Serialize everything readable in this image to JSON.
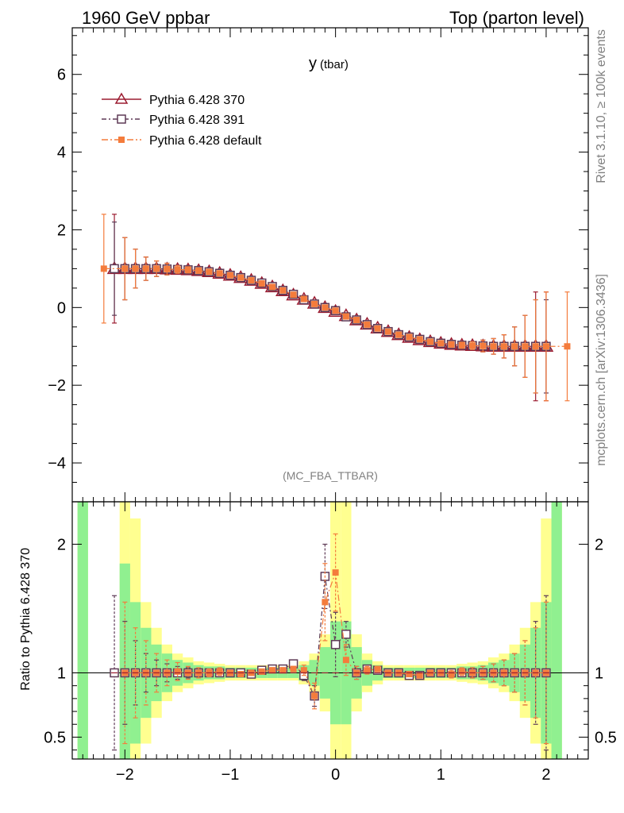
{
  "header": {
    "left": "1960 GeV ppbar",
    "right": "Top (parton level)"
  },
  "side_labels": {
    "rivet": "Rivet 3.1.10, ≥ 100k events",
    "mcplots": "mcplots.cern.ch [arXiv:1306.3436]"
  },
  "chart_data": {
    "type": "scatter",
    "title": "y",
    "title_sub": "(tbar)",
    "analysis": "(MC_FBA_TTBAR)",
    "xlim": [
      -2.5,
      2.4
    ],
    "ylim": [
      -5,
      7.2
    ],
    "ratio_ylim": [
      0.33,
      2.33
    ],
    "ratio_ylabel": "Ratio to Pythia 6.428 370",
    "x_ticks": [
      "−2",
      "−1",
      "0",
      "1",
      "2"
    ],
    "y_ticks": [
      "−4",
      "−2",
      "0",
      "2",
      "4",
      "6"
    ],
    "ratio_ticks": [
      "0.5",
      "1",
      "2"
    ],
    "colors": {
      "p370": "#9b1b30",
      "p391": "#5e3a56",
      "pdef": "#f47c3c",
      "band_green": "#90f090",
      "band_yellow": "#ffff90"
    },
    "series": [
      {
        "name": "Pythia 6.428 370",
        "x": [
          -2.1,
          -2.0,
          -1.9,
          -1.8,
          -1.7,
          -1.6,
          -1.5,
          -1.4,
          -1.3,
          -1.2,
          -1.1,
          -1.0,
          -0.9,
          -0.8,
          -0.7,
          -0.6,
          -0.5,
          -0.4,
          -0.3,
          -0.2,
          -0.1,
          0.0,
          0.1,
          0.2,
          0.3,
          0.4,
          0.5,
          0.6,
          0.7,
          0.8,
          0.9,
          1.0,
          1.1,
          1.2,
          1.3,
          1.4,
          1.5,
          1.6,
          1.7,
          1.8,
          1.9,
          2.0
        ],
        "y": [
          1.0,
          1.0,
          1.0,
          1.0,
          1.0,
          0.99,
          0.98,
          0.97,
          0.95,
          0.92,
          0.88,
          0.83,
          0.77,
          0.7,
          0.62,
          0.53,
          0.43,
          0.32,
          0.21,
          0.11,
          0.0,
          -0.1,
          -0.21,
          -0.32,
          -0.43,
          -0.53,
          -0.62,
          -0.7,
          -0.77,
          -0.83,
          -0.88,
          -0.92,
          -0.95,
          -0.97,
          -0.98,
          -0.99,
          -1.0,
          -1.0,
          -1.0,
          -1.0,
          -1.0,
          -1.0
        ],
        "err": [
          1.4,
          0.8,
          0.5,
          0.3,
          0.2,
          0.15,
          0.1,
          0.08,
          0.07,
          0.06,
          0.05,
          0.05,
          0.05,
          0.05,
          0.05,
          0.05,
          0.05,
          0.05,
          0.05,
          0.05,
          0.05,
          0.05,
          0.05,
          0.05,
          0.05,
          0.05,
          0.05,
          0.05,
          0.05,
          0.05,
          0.05,
          0.06,
          0.07,
          0.08,
          0.1,
          0.15,
          0.2,
          0.3,
          0.5,
          0.8,
          1.4,
          1.4
        ],
        "ratio": [
          1.0,
          1.0,
          1.0,
          1.0,
          1.0,
          1.0,
          1.0,
          1.0,
          1.0,
          1.0,
          1.0,
          1.0,
          1.0,
          1.0,
          1.0,
          1.0,
          1.0,
          1.0,
          1.0,
          1.0,
          1.0,
          1.0,
          1.0,
          1.0,
          1.0,
          1.0,
          1.0,
          1.0,
          1.0,
          1.0,
          1.0,
          1.0,
          1.0,
          1.0,
          1.0,
          1.0,
          1.0,
          1.0,
          1.0,
          1.0,
          1.0,
          1.0
        ]
      },
      {
        "name": "Pythia 6.428 391",
        "x": [
          -2.1,
          -2.0,
          -1.9,
          -1.8,
          -1.7,
          -1.6,
          -1.5,
          -1.4,
          -1.3,
          -1.2,
          -1.1,
          -1.0,
          -0.9,
          -0.8,
          -0.7,
          -0.6,
          -0.5,
          -0.4,
          -0.3,
          -0.2,
          -0.1,
          0.0,
          0.1,
          0.2,
          0.3,
          0.4,
          0.5,
          0.6,
          0.7,
          0.8,
          0.9,
          1.0,
          1.1,
          1.2,
          1.3,
          1.4,
          1.5,
          1.6,
          1.7,
          1.8,
          1.9,
          2.0
        ],
        "y": [
          1.0,
          1.0,
          1.0,
          1.0,
          1.0,
          0.99,
          0.98,
          0.97,
          0.95,
          0.92,
          0.88,
          0.83,
          0.77,
          0.7,
          0.63,
          0.54,
          0.44,
          0.34,
          0.2,
          0.09,
          0.0,
          -0.08,
          -0.24,
          -0.32,
          -0.44,
          -0.54,
          -0.62,
          -0.7,
          -0.76,
          -0.82,
          -0.88,
          -0.92,
          -0.95,
          -0.97,
          -0.98,
          -0.99,
          -1.0,
          -1.0,
          -1.0,
          -1.0,
          -1.0,
          -1.0
        ],
        "err": [
          1.2,
          0.8,
          0.5,
          0.3,
          0.2,
          0.15,
          0.1,
          0.08,
          0.07,
          0.06,
          0.05,
          0.05,
          0.05,
          0.05,
          0.05,
          0.05,
          0.05,
          0.05,
          0.05,
          0.05,
          0.05,
          0.05,
          0.05,
          0.05,
          0.05,
          0.05,
          0.05,
          0.05,
          0.05,
          0.05,
          0.05,
          0.06,
          0.07,
          0.08,
          0.1,
          0.15,
          0.2,
          0.3,
          0.5,
          0.8,
          1.2,
          1.2
        ],
        "ratio": [
          1.0,
          1.0,
          1.0,
          1.0,
          1.0,
          1.0,
          1.0,
          1.0,
          1.0,
          1.0,
          1.0,
          1.0,
          1.0,
          0.99,
          1.02,
          1.03,
          1.03,
          1.07,
          0.98,
          0.82,
          1.75,
          1.22,
          1.3,
          1.0,
          1.03,
          1.02,
          1.0,
          1.0,
          0.98,
          0.98,
          1.0,
          1.0,
          1.0,
          1.0,
          1.0,
          1.0,
          1.0,
          1.0,
          1.0,
          1.0,
          1.0,
          1.0
        ],
        "ratio_err": [
          0.6,
          0.4,
          0.25,
          0.15,
          0.1,
          0.07,
          0.05,
          0.04,
          0.03,
          0.03,
          0.03,
          0.02,
          0.02,
          0.02,
          0.02,
          0.02,
          0.02,
          0.02,
          0.04,
          0.08,
          0.25,
          0.25,
          0.1,
          0.05,
          0.03,
          0.02,
          0.02,
          0.02,
          0.02,
          0.02,
          0.02,
          0.02,
          0.03,
          0.03,
          0.04,
          0.05,
          0.07,
          0.1,
          0.15,
          0.25,
          0.4,
          0.6
        ]
      },
      {
        "name": "Pythia 6.428 default",
        "x": [
          -2.2,
          -2.0,
          -1.9,
          -1.8,
          -1.7,
          -1.6,
          -1.5,
          -1.4,
          -1.3,
          -1.2,
          -1.1,
          -1.0,
          -0.9,
          -0.8,
          -0.7,
          -0.6,
          -0.5,
          -0.4,
          -0.3,
          -0.2,
          -0.1,
          0.0,
          0.1,
          0.2,
          0.3,
          0.4,
          0.5,
          0.6,
          0.7,
          0.8,
          0.9,
          1.0,
          1.1,
          1.2,
          1.3,
          1.4,
          1.5,
          1.6,
          1.7,
          1.8,
          1.9,
          2.0,
          2.2
        ],
        "y": [
          1.0,
          1.0,
          1.0,
          1.0,
          1.0,
          0.99,
          0.98,
          0.97,
          0.95,
          0.92,
          0.88,
          0.83,
          0.77,
          0.7,
          0.62,
          0.53,
          0.44,
          0.33,
          0.22,
          0.09,
          0.0,
          -0.08,
          -0.23,
          -0.32,
          -0.44,
          -0.54,
          -0.62,
          -0.7,
          -0.76,
          -0.82,
          -0.88,
          -0.92,
          -0.95,
          -0.97,
          -0.98,
          -0.99,
          -1.0,
          -1.0,
          -1.0,
          -1.0,
          -1.0,
          -1.0,
          -1.0
        ],
        "err": [
          1.4,
          0.8,
          0.5,
          0.3,
          0.2,
          0.15,
          0.1,
          0.08,
          0.07,
          0.06,
          0.05,
          0.05,
          0.05,
          0.05,
          0.05,
          0.05,
          0.05,
          0.05,
          0.05,
          0.05,
          0.05,
          0.05,
          0.05,
          0.05,
          0.05,
          0.05,
          0.05,
          0.05,
          0.05,
          0.05,
          0.05,
          0.06,
          0.07,
          0.08,
          0.1,
          0.15,
          0.2,
          0.3,
          0.5,
          0.8,
          1.2,
          1.4,
          1.4
        ],
        "ratio": [
          null,
          1.0,
          1.0,
          1.0,
          1.0,
          1.0,
          1.01,
          1.0,
          1.0,
          1.0,
          1.01,
          1.0,
          0.99,
          1.0,
          1.01,
          1.02,
          1.02,
          1.03,
          1.02,
          0.82,
          1.55,
          1.78,
          1.1,
          1.0,
          1.02,
          1.03,
          1.0,
          1.0,
          0.99,
          0.98,
          1.0,
          1.0,
          0.99,
          1.01,
          1.0,
          1.0,
          1.0,
          1.0,
          1.0,
          1.0,
          1.0,
          1.0,
          null
        ],
        "ratio_err": [
          0,
          0.55,
          0.35,
          0.25,
          0.15,
          0.1,
          0.07,
          0.05,
          0.04,
          0.03,
          0.03,
          0.02,
          0.02,
          0.02,
          0.02,
          0.02,
          0.02,
          0.02,
          0.04,
          0.1,
          0.3,
          0.3,
          0.12,
          0.05,
          0.03,
          0.02,
          0.02,
          0.02,
          0.02,
          0.02,
          0.02,
          0.02,
          0.03,
          0.03,
          0.04,
          0.05,
          0.07,
          0.1,
          0.15,
          0.25,
          0.35,
          0.55,
          0
        ]
      }
    ],
    "bands": {
      "x_edges": [
        -2.45,
        -2.35,
        -2.05,
        -1.95,
        -1.85,
        -1.75,
        -1.65,
        -1.55,
        -1.45,
        -1.35,
        -1.25,
        -1.15,
        -1.05,
        -0.95,
        -0.85,
        -0.75,
        -0.65,
        -0.55,
        -0.45,
        -0.35,
        -0.25,
        -0.15,
        -0.05,
        0.05,
        0.15,
        0.25,
        0.35,
        0.45,
        0.55,
        0.65,
        0.75,
        0.85,
        0.95,
        1.05,
        1.15,
        1.25,
        1.35,
        1.45,
        1.55,
        1.65,
        1.75,
        1.85,
        1.95,
        2.05,
        2.15
      ],
      "green": [
        2.5,
        0,
        0.85,
        0.55,
        0.35,
        0.22,
        0.15,
        0.1,
        0.08,
        0.06,
        0.05,
        0.05,
        0.04,
        0.04,
        0.04,
        0.04,
        0.04,
        0.04,
        0.04,
        0.06,
        0.1,
        0.2,
        0.4,
        0.4,
        0.2,
        0.1,
        0.06,
        0.04,
        0.04,
        0.04,
        0.04,
        0.04,
        0.04,
        0.04,
        0.05,
        0.05,
        0.06,
        0.08,
        0.1,
        0.15,
        0.22,
        0.35,
        0.55,
        2.5
      ],
      "yellow": [
        2.5,
        0,
        2.5,
        1.2,
        0.55,
        0.35,
        0.22,
        0.15,
        0.12,
        0.09,
        0.08,
        0.07,
        0.06,
        0.06,
        0.06,
        0.06,
        0.06,
        0.06,
        0.06,
        0.09,
        0.15,
        0.3,
        2.5,
        2.5,
        0.3,
        0.15,
        0.09,
        0.06,
        0.06,
        0.06,
        0.06,
        0.06,
        0.06,
        0.06,
        0.07,
        0.08,
        0.09,
        0.12,
        0.15,
        0.22,
        0.35,
        0.55,
        1.2,
        2.5
      ]
    }
  }
}
